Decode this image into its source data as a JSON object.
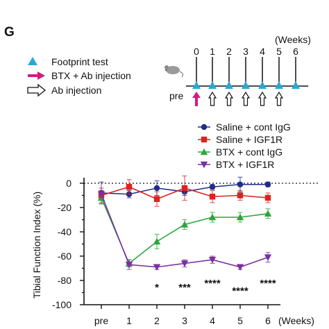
{
  "panel_label": "G",
  "timeline": {
    "unit_label": "(Weeks)",
    "pre_label": "pre",
    "week_labels": [
      "0",
      "1",
      "2",
      "3",
      "4",
      "5",
      "6"
    ],
    "key": [
      {
        "icon": "triangle",
        "color": "#29a8d8",
        "label": "Footprint test"
      },
      {
        "icon": "magenta-arrow",
        "color": "#d6197b",
        "label": "BTX + Ab injection"
      },
      {
        "icon": "hollow-arrow",
        "color": "#111111",
        "label": "Ab injection"
      }
    ],
    "footprint_marks": [
      "pre",
      "0",
      "1",
      "2",
      "3",
      "4",
      "5",
      "6"
    ],
    "btx_ab_injection_at": [
      "pre"
    ],
    "ab_injection_at": [
      "1",
      "2",
      "3",
      "4",
      "5"
    ]
  },
  "chart_data": {
    "type": "line",
    "ylabel": "Tibial Function Index (%)",
    "xlabel": "(Weeks)",
    "categories": [
      "pre",
      "1",
      "2",
      "3",
      "4",
      "5",
      "6"
    ],
    "ylim": [
      -100,
      0
    ],
    "yticks": [
      0,
      -20,
      -40,
      -60,
      -80,
      -100
    ],
    "zero_line": "dotted",
    "legend_position": "top-right",
    "series": [
      {
        "name": "Saline + cont IgG",
        "color": "#1f2d8a",
        "marker": "circle",
        "values": [
          -8,
          -9,
          -4,
          -7,
          -3,
          -1,
          -1
        ],
        "errors": [
          9,
          3,
          6,
          3,
          2,
          6,
          2
        ]
      },
      {
        "name": "Saline + IGF1R",
        "color": "#e02020",
        "marker": "square",
        "values": [
          -10,
          -3,
          -13,
          -4,
          -11,
          -10,
          -12
        ],
        "errors": [
          6,
          6,
          6,
          10,
          5,
          4,
          4
        ]
      },
      {
        "name": "BTX + cont IgG",
        "color": "#2aa63a",
        "marker": "triangle-up",
        "values": [
          -12,
          -66,
          -48,
          -34,
          -28,
          -28,
          -25
        ],
        "errors": [
          5,
          3,
          6,
          4,
          4,
          4,
          4
        ]
      },
      {
        "name": "BTX + IGF1R",
        "color": "#7b2fa0",
        "marker": "triangle-down",
        "values": [
          -9,
          -67,
          -69,
          -66,
          -63,
          -69,
          -61
        ],
        "errors": [
          3,
          4,
          2,
          3,
          3,
          2,
          4
        ]
      }
    ],
    "significance": [
      {
        "x": "2",
        "label": "*"
      },
      {
        "x": "3",
        "label": "***"
      },
      {
        "x": "4",
        "label": "****"
      },
      {
        "x": "5",
        "label": "****"
      },
      {
        "x": "6",
        "label": "****"
      }
    ]
  }
}
